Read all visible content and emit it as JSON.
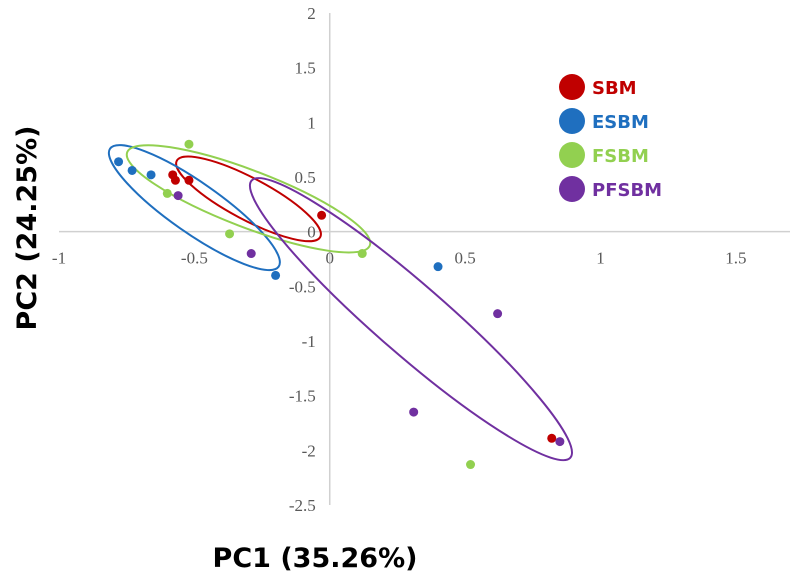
{
  "chart_data": {
    "type": "scatter",
    "xlabel": "PC1 (35.26%)",
    "ylabel": "PC2 (24.25%)",
    "xlim": [
      -1,
      1.7
    ],
    "ylim": [
      -2.5,
      2
    ],
    "x_ticks": [
      {
        "value": -1,
        "label": "-1"
      },
      {
        "value": -0.5,
        "label": "-0.5"
      },
      {
        "value": 0,
        "label": "0"
      },
      {
        "value": 0.5,
        "label": "0.5"
      },
      {
        "value": 1,
        "label": "1"
      },
      {
        "value": 1.5,
        "label": "1.5"
      }
    ],
    "y_ticks": [
      {
        "value": 2,
        "label": "2"
      },
      {
        "value": 1.5,
        "label": "1.5"
      },
      {
        "value": 1,
        "label": "1"
      },
      {
        "value": 0.5,
        "label": "0.5"
      },
      {
        "value": 0,
        "label": "0"
      },
      {
        "value": -0.5,
        "label": "-0.5"
      },
      {
        "value": -1,
        "label": "-1"
      },
      {
        "value": -1.5,
        "label": "-1.5"
      },
      {
        "value": -2,
        "label": "-2"
      },
      {
        "value": -2.5,
        "label": "-2.5"
      }
    ],
    "grid": false,
    "legend_position": "top-right",
    "series": [
      {
        "name": "SBM",
        "color": "#c00000",
        "points": [
          [
            -0.58,
            0.52
          ],
          [
            -0.57,
            0.47
          ],
          [
            -0.52,
            0.47
          ],
          [
            -0.03,
            0.15
          ],
          [
            0.82,
            -1.89
          ]
        ],
        "ellipse": {
          "cx": -0.3,
          "cy": 0.3,
          "rx": 0.3,
          "ry": 0.19,
          "angle_deg": -28
        }
      },
      {
        "name": "ESBM",
        "color": "#1f6fbf",
        "points": [
          [
            -0.78,
            0.64
          ],
          [
            -0.73,
            0.56
          ],
          [
            -0.66,
            0.52
          ],
          [
            -0.2,
            -0.4
          ],
          [
            0.4,
            -0.32
          ]
        ],
        "ellipse": {
          "cx": -0.5,
          "cy": 0.22,
          "rx": 0.38,
          "ry": 0.23,
          "angle_deg": -35
        }
      },
      {
        "name": "FSBM",
        "color": "#92d050",
        "points": [
          [
            -0.52,
            0.8
          ],
          [
            -0.6,
            0.35
          ],
          [
            -0.37,
            -0.02
          ],
          [
            0.12,
            -0.2
          ],
          [
            0.52,
            -2.13
          ]
        ],
        "ellipse": {
          "cx": -0.3,
          "cy": 0.3,
          "rx": 0.48,
          "ry": 0.26,
          "angle_deg": -21
        }
      },
      {
        "name": "PFSBM",
        "color": "#7030a0",
        "points": [
          [
            -0.56,
            0.33
          ],
          [
            -0.29,
            -0.2
          ],
          [
            0.31,
            -1.65
          ],
          [
            0.62,
            -0.75
          ],
          [
            0.85,
            -1.92
          ]
        ],
        "ellipse": {
          "cx": 0.3,
          "cy": -0.8,
          "rx": 0.78,
          "ry": 0.32,
          "angle_deg": -41
        }
      }
    ]
  }
}
